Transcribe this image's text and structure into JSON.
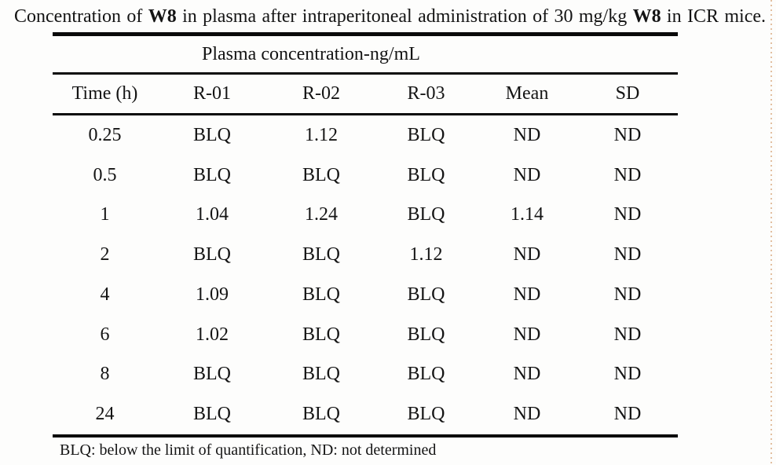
{
  "caption": {
    "t1": "Concentration of ",
    "b1": "W8",
    "t2": " in plasma after intraperitoneal administration of 30 mg/kg ",
    "b2": "W8",
    "t3": " in ICR mice."
  },
  "table": {
    "spanning_header": "Plasma concentration-ng/mL",
    "columns": [
      "Time (h)",
      "R-01",
      "R-02",
      "R-03",
      "Mean",
      "SD"
    ],
    "rows": [
      [
        "0.25",
        "BLQ",
        "1.12",
        "BLQ",
        "ND",
        "ND"
      ],
      [
        "0.5",
        "BLQ",
        "BLQ",
        "BLQ",
        "ND",
        "ND"
      ],
      [
        "1",
        "1.04",
        "1.24",
        "BLQ",
        "1.14",
        "ND"
      ],
      [
        "2",
        "BLQ",
        "BLQ",
        "1.12",
        "ND",
        "ND"
      ],
      [
        "4",
        "1.09",
        "BLQ",
        "BLQ",
        "ND",
        "ND"
      ],
      [
        "6",
        "1.02",
        "BLQ",
        "BLQ",
        "ND",
        "ND"
      ],
      [
        "8",
        "BLQ",
        "BLQ",
        "BLQ",
        "ND",
        "ND"
      ],
      [
        "24",
        "BLQ",
        "BLQ",
        "BLQ",
        "ND",
        "ND"
      ]
    ]
  },
  "footnote": "BLQ: below the limit of quantification, ND: not determined"
}
